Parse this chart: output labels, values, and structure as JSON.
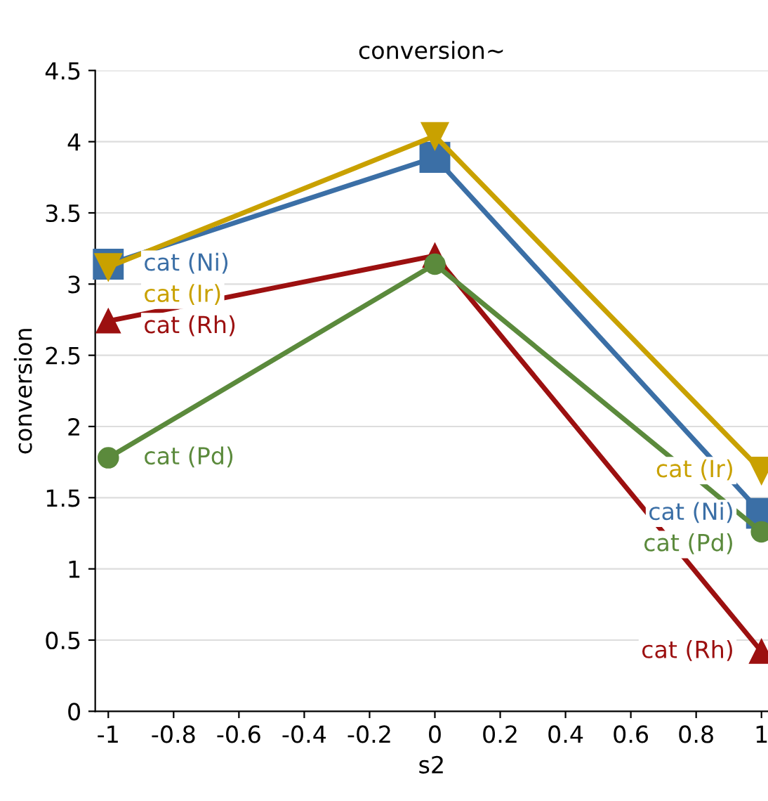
{
  "chart_data": {
    "type": "line",
    "title": "conversion~",
    "xlabel": "s2",
    "ylabel": "conversion",
    "x": [
      -1,
      0,
      1
    ],
    "series": [
      {
        "name": "cat (Ni)",
        "color": "#3b6fa6",
        "marker": "square",
        "values": [
          3.14,
          3.89,
          1.39
        ]
      },
      {
        "name": "cat (Ir)",
        "color": "#c9a100",
        "marker": "triangle_down",
        "values": [
          3.12,
          4.04,
          1.69
        ]
      },
      {
        "name": "cat (Rh)",
        "color": "#9c1010",
        "marker": "triangle",
        "values": [
          2.74,
          3.2,
          0.42
        ]
      },
      {
        "name": "cat (Pd)",
        "color": "#5b8a3c",
        "marker": "circle",
        "values": [
          1.78,
          3.14,
          1.26
        ]
      }
    ],
    "xlim": [
      -1.04,
      1.02
    ],
    "xticks": [
      -1,
      -0.8,
      -0.6,
      -0.4,
      -0.2,
      0,
      0.2,
      0.4,
      0.6,
      0.8,
      1
    ],
    "ylim": [
      0,
      4.5
    ],
    "yticks": [
      0,
      0.5,
      1,
      1.5,
      2,
      2.5,
      3,
      3.5,
      4,
      4.5
    ],
    "grid": "y",
    "legend": false,
    "line_style": "solid"
  }
}
